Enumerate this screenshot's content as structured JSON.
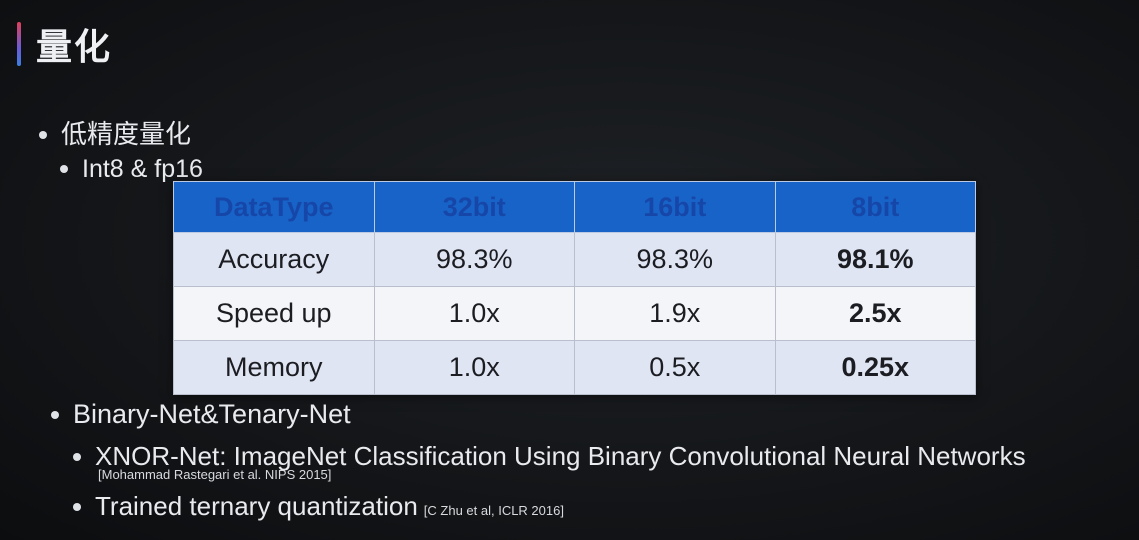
{
  "slide": {
    "title": "量化"
  },
  "bullets": {
    "low_precision": "低精度量化",
    "int8_fp16": "Int8 & fp16",
    "binary_net": "Binary-Net&Tenary-Net",
    "xnor": "XNOR-Net: ImageNet Classification Using Binary Convolutional Neural Networks",
    "xnor_cite": "[Mohammad Rastegari  et al. NIPS 2015]",
    "ttq": "Trained ternary quantization",
    "ttq_cite": "[C Zhu et al, ICLR 2016]"
  },
  "table": {
    "headers": [
      "DataType",
      "32bit",
      "16bit",
      "8bit"
    ],
    "rows": [
      [
        "Accuracy",
        "98.3%",
        "98.3%",
        "98.1%"
      ],
      [
        "Speed up",
        "1.0x",
        "1.9x",
        "2.5x"
      ],
      [
        "Memory",
        "1.0x",
        "0.5x",
        "0.25x"
      ]
    ]
  }
}
